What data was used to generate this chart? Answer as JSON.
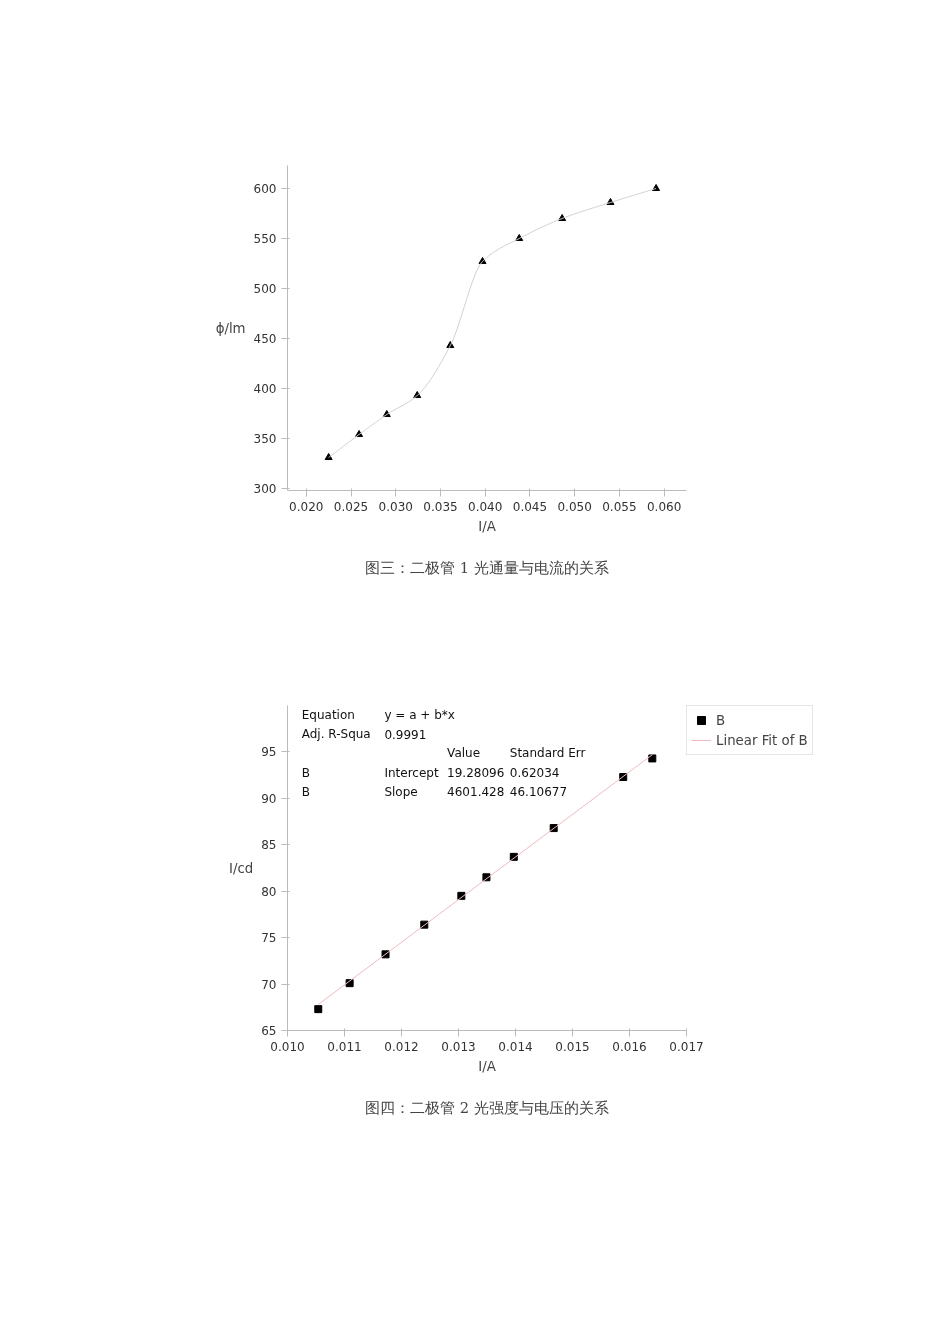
{
  "chart_data": [
    {
      "type": "scatter",
      "xlabel": "I/A",
      "ylabel": "ϕ/lm",
      "x": [
        0.0225,
        0.0259,
        0.029,
        0.0324,
        0.0361,
        0.0397,
        0.0438,
        0.0486,
        0.054,
        0.0591
      ],
      "series": [
        {
          "color": "#000000",
          "values": [
            331,
            354,
            374,
            393,
            443,
            527,
            550,
            570,
            586,
            600
          ],
          "marker": "triangle"
        },
        {
          "type": "line",
          "color": "#d0d0d0",
          "values": [
            331,
            354,
            374,
            393,
            443,
            527,
            550,
            570,
            586,
            600
          ]
        }
      ],
      "xlim": [
        0.0179,
        0.0625
      ],
      "ylim": [
        298,
        623
      ],
      "xticks": [
        {
          "value": 0.02,
          "label": "0.020"
        },
        {
          "value": 0.025,
          "label": "0.025"
        },
        {
          "value": 0.03,
          "label": "0.030"
        },
        {
          "value": 0.035,
          "label": "0.035"
        },
        {
          "value": 0.04,
          "label": "0.040"
        },
        {
          "value": 0.045,
          "label": "0.045"
        },
        {
          "value": 0.05,
          "label": "0.050"
        },
        {
          "value": 0.055,
          "label": "0.055"
        },
        {
          "value": 0.06,
          "label": "0.060"
        }
      ],
      "yticks": [
        300,
        350,
        400,
        450,
        500,
        550,
        600
      ],
      "grid": false,
      "legend": false,
      "annotations": [
        "图三：二极管 1 光通量与电流的关系"
      ]
    },
    {
      "type": "scatter",
      "xlabel": "I/A",
      "ylabel": "I/cd",
      "series": [
        {
          "name": "B",
          "color": "#000000",
          "marker": "square",
          "x": [
            0.01054,
            0.01109,
            0.01172,
            0.0124,
            0.01305,
            0.01349,
            0.01397,
            0.01467,
            0.01589,
            0.0164
          ],
          "values": [
            67.3,
            70.1,
            73.2,
            76.4,
            79.5,
            81.5,
            83.7,
            86.8,
            92.3,
            94.3
          ]
        },
        {
          "name": "Linear Fit of B",
          "type": "line",
          "color": "#f4b8c0",
          "x": [
            0.01054,
            0.0164
          ],
          "values": [
            67.8,
            94.7
          ]
        }
      ],
      "xlim": [
        0.01,
        0.017
      ],
      "ylim": [
        65,
        100
      ],
      "xticks": [
        {
          "value": 0.01,
          "label": "0.010"
        },
        {
          "value": 0.011,
          "label": "0.011"
        },
        {
          "value": 0.012,
          "label": "0.012"
        },
        {
          "value": 0.013,
          "label": "0.013"
        },
        {
          "value": 0.014,
          "label": "0.014"
        },
        {
          "value": 0.015,
          "label": "0.015"
        },
        {
          "value": 0.016,
          "label": "0.016"
        },
        {
          "value": 0.017,
          "label": "0.017"
        }
      ],
      "yticks": [
        65,
        70,
        75,
        80,
        85,
        90,
        95
      ],
      "grid": false,
      "legend": "top right",
      "annotations": [
        "图四：二极管 2 光强度与电压的关系",
        "Equation",
        "y = a + b*x",
        "Adj. R-Squa",
        "0.9991",
        "Value",
        "Standard Err",
        "B",
        "Intercept",
        "19.28096",
        "0.62034",
        "B",
        "Slope",
        "4601.428",
        "46.10677"
      ]
    }
  ]
}
